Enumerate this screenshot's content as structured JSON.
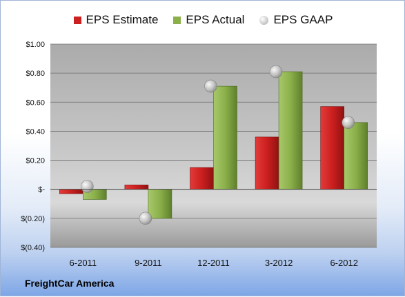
{
  "chart_data": {
    "type": "bar",
    "categories": [
      "6-2011",
      "9-2011",
      "12-2011",
      "3-2012",
      "6-2012"
    ],
    "series": [
      {
        "name": "EPS Estimate",
        "kind": "bar",
        "color": "#cc1f1f",
        "values": [
          -0.03,
          0.03,
          0.15,
          0.36,
          0.57
        ]
      },
      {
        "name": "EPS Actual",
        "kind": "bar",
        "color": "#8bb04a",
        "values": [
          -0.07,
          -0.2,
          0.71,
          0.81,
          0.46
        ]
      },
      {
        "name": "EPS GAAP",
        "kind": "marker",
        "color": "#b8b8b8",
        "values": [
          0.02,
          -0.2,
          0.71,
          0.81,
          0.46
        ]
      }
    ],
    "ylim": [
      -0.4,
      1.0
    ],
    "yticks": [
      {
        "value": 1.0,
        "label": "$1.00"
      },
      {
        "value": 0.8,
        "label": "$0.80"
      },
      {
        "value": 0.6,
        "label": "$0.60"
      },
      {
        "value": 0.4,
        "label": "$0.40"
      },
      {
        "value": 0.2,
        "label": "$0.20"
      },
      {
        "value": 0.0,
        "label": "$-"
      },
      {
        "value": -0.2,
        "label": "$(0.20)"
      },
      {
        "value": -0.4,
        "label": "$(0.40)"
      }
    ],
    "grid": true,
    "legend_position": "top"
  },
  "footer": {
    "company": "FreightCar America"
  }
}
